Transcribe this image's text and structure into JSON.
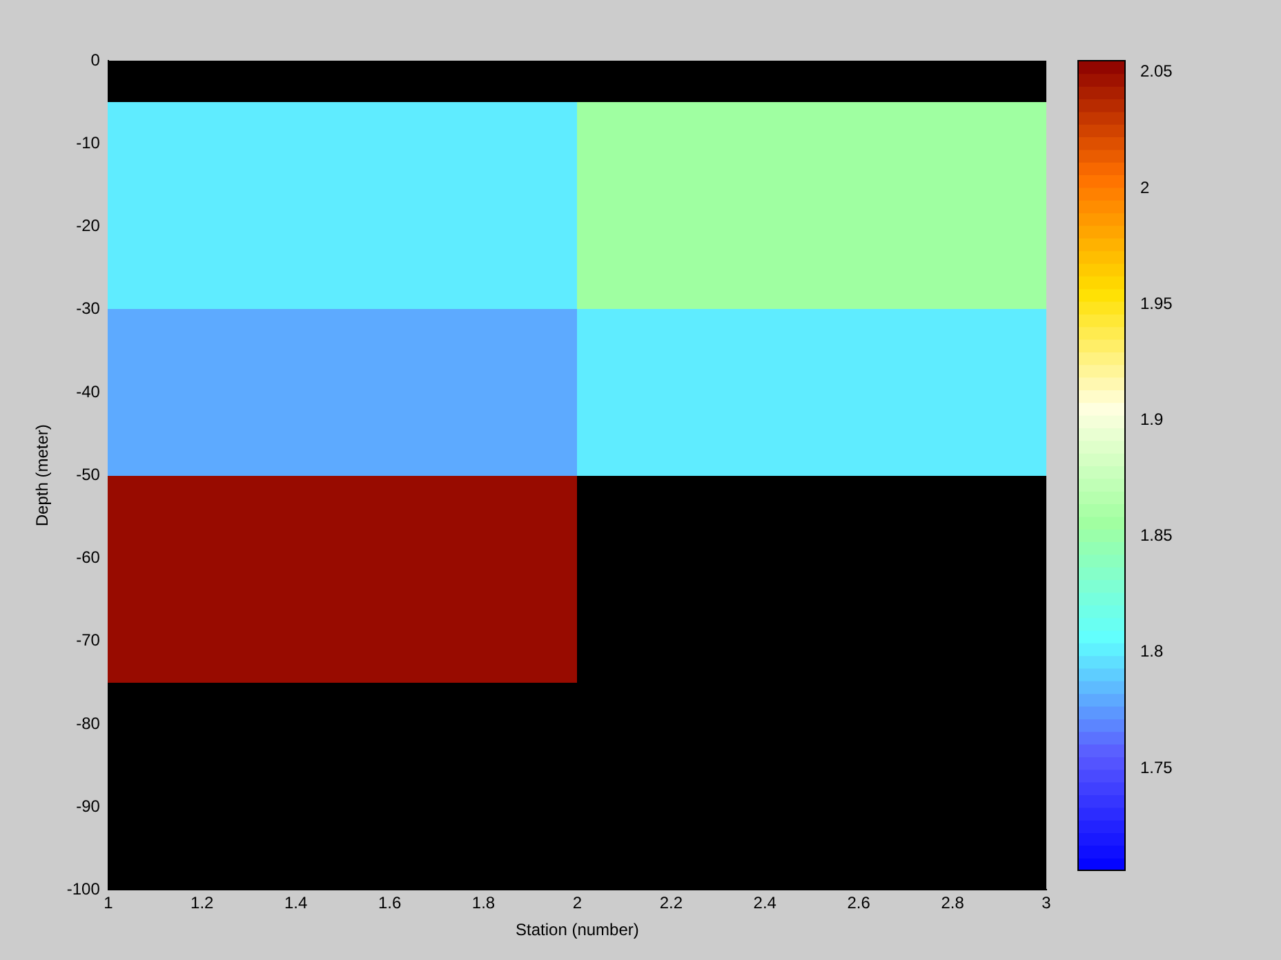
{
  "chart_data": {
    "type": "heatmap",
    "xlabel": "Station (number)",
    "ylabel": "Depth (meter)",
    "x": [
      1.5,
      2.5
    ],
    "y": [
      -7.5,
      -12.5,
      -17.5,
      -22.5,
      -27.5,
      -32.5,
      -37.5,
      -42.5,
      -47.5,
      -52.5,
      -57.5,
      -62.5,
      -67.5,
      -72.5
    ],
    "cells": [
      [
        1.8,
        1.855
      ],
      [
        1.8,
        1.855
      ],
      [
        1.8,
        1.855
      ],
      [
        1.8,
        1.855
      ],
      [
        1.8,
        1.855
      ],
      [
        1.78,
        1.8
      ],
      [
        1.78,
        1.8
      ],
      [
        1.78,
        1.8
      ],
      [
        1.78,
        1.8
      ],
      [
        2.05,
        null
      ],
      [
        2.05,
        null
      ],
      [
        2.05,
        null
      ],
      [
        2.05,
        null
      ],
      [
        2.05,
        null
      ]
    ],
    "xlim": [
      1,
      3
    ],
    "xticks": [
      1,
      1.2,
      1.4,
      1.6,
      1.8,
      2,
      2.2,
      2.4,
      2.6,
      2.8,
      3
    ],
    "ylim": [
      -100,
      0
    ],
    "yticks": [
      0,
      -10,
      -20,
      -30,
      -40,
      -50,
      -60,
      -70,
      -80,
      -90,
      -100
    ],
    "clim": [
      1.706,
      2.055
    ],
    "cticks": [
      1.75,
      1.8,
      1.85,
      1.9,
      1.95,
      2,
      2.05
    ],
    "colors": [
      "#0000ff",
      "#5a5aff",
      "#60ffff",
      "#a0ffa0",
      "#ffffe0",
      "#ffe000",
      "#ff7000",
      "#8c0000"
    ],
    "grid": false,
    "legend": false
  }
}
